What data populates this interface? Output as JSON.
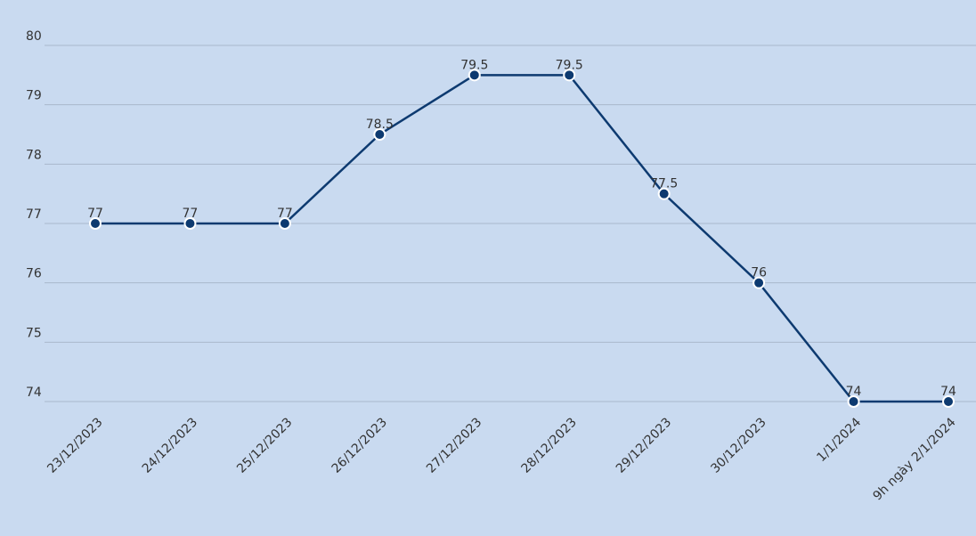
{
  "chart_data": {
    "type": "line",
    "categories": [
      "23/12/2023",
      "24/12/2023",
      "25/12/2023",
      "26/12/2023",
      "27/12/2023",
      "28/12/2023",
      "29/12/2023",
      "30/12/2023",
      "1/1/2024",
      "9h ngày 2/1/2024"
    ],
    "values": [
      77,
      77,
      77,
      78.5,
      79.5,
      79.5,
      77.5,
      76,
      74,
      74
    ],
    "color": "#0d3a70",
    "ylim": [
      74,
      80
    ],
    "yticks": [
      74,
      75,
      76,
      77,
      78,
      79,
      80
    ],
    "grid": true
  }
}
